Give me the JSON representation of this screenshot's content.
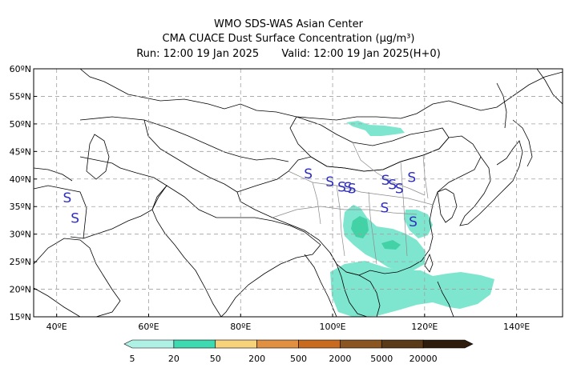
{
  "header": {
    "line1": "WMO SDS-WAS Asian Center",
    "line2": "CMA CUACE Dust Surface Concentration (μg/m³)",
    "run": "Run: 12:00 19 Jan 2025",
    "valid": "Valid: 12:00 19 Jan 2025(H+0)"
  },
  "axes": {
    "lon_range": [
      35,
      150
    ],
    "lat_range": [
      15,
      60
    ],
    "lat_ticks": [
      "60ºN",
      "55ºN",
      "50ºN",
      "45ºN",
      "40ºN",
      "35ºN",
      "30ºN",
      "25ºN",
      "20ºN",
      "15ºN"
    ],
    "lat_values": [
      60,
      55,
      50,
      45,
      40,
      35,
      30,
      25,
      20,
      15
    ],
    "lon_ticks": [
      "40ºE",
      "60ºE",
      "80ºE",
      "100ºE",
      "120ºE",
      "140ºE"
    ],
    "lon_values": [
      40,
      60,
      80,
      100,
      120,
      140
    ],
    "grid": "dashed"
  },
  "colorbar": {
    "levels": [
      "5",
      "20",
      "50",
      "200",
      "500",
      "2000",
      "5000",
      "20000"
    ],
    "colors": [
      "#aef0e4",
      "#3dd9b0",
      "#f6d37a",
      "#e09040",
      "#c86b1e",
      "#8a5520",
      "#5a3a18",
      "#2e1c0c"
    ]
  },
  "stations": {
    "symbol": "S",
    "color": "#2f2fbf",
    "points": [
      [
        42.3,
        36.6
      ],
      [
        44.0,
        32.9
      ],
      [
        94.7,
        41.0
      ],
      [
        99.4,
        39.5
      ],
      [
        102.0,
        38.6
      ],
      [
        103.3,
        38.5
      ],
      [
        104.2,
        38.3
      ],
      [
        111.5,
        39.8
      ],
      [
        113.0,
        39.0
      ],
      [
        114.5,
        38.3
      ],
      [
        117.2,
        40.3
      ],
      [
        111.3,
        34.8
      ],
      [
        117.5,
        32.3
      ]
    ]
  },
  "dust_areas": {
    "level_color": "#7ee6cf",
    "darker_color": "#43d1a6",
    "regions": [
      "Mongolia-Inner Mongolia border",
      "Sichuan Basin",
      "South China",
      "South China Sea",
      "Indochina"
    ]
  }
}
